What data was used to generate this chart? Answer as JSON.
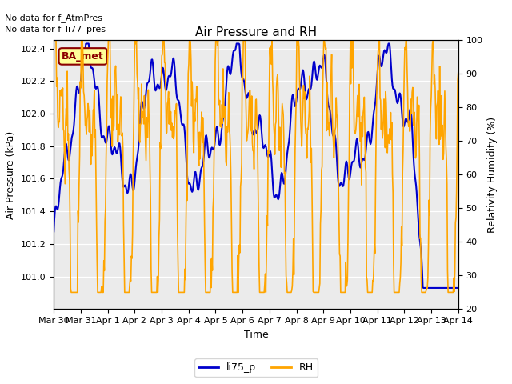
{
  "title": "Air Pressure and RH",
  "no_data_text_1": "No data for f_AtmPres",
  "no_data_text_2": "No data for f_li77_pres",
  "ba_met_label": "BA_met",
  "xlabel": "Time",
  "ylabel_left": "Air Pressure (kPa)",
  "ylabel_right": "Relativity Humidity (%)",
  "left_ylim": [
    100.8,
    102.45
  ],
  "right_ylim": [
    20,
    100
  ],
  "left_yticks": [
    101.0,
    101.2,
    101.4,
    101.6,
    101.8,
    102.0,
    102.2,
    102.4
  ],
  "right_yticks": [
    20,
    30,
    40,
    50,
    60,
    70,
    80,
    90,
    100
  ],
  "xtick_labels": [
    "Mar 30",
    "Mar 31",
    "Apr 1",
    "Apr 2",
    "Apr 3",
    "Apr 4",
    "Apr 5",
    "Apr 6",
    "Apr 7",
    "Apr 8",
    "Apr 9",
    "Apr 10",
    "Apr 11",
    "Apr 12",
    "Apr 13",
    "Apr 14"
  ],
  "line_li75_color": "#0000cc",
  "line_rh_color": "#FFA500",
  "legend_entries": [
    "li75_p",
    "RH"
  ],
  "plot_bg_color": "#ebebeb",
  "grid_color": "#ffffff",
  "title_fontsize": 11,
  "label_fontsize": 9,
  "tick_fontsize": 8,
  "linewidth_pressure": 1.5,
  "linewidth_rh": 1.2
}
